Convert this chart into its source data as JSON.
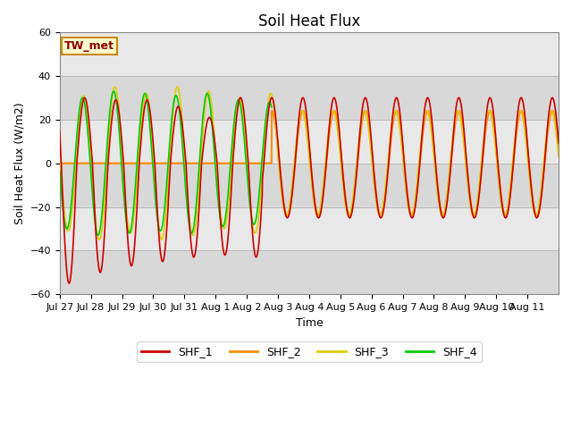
{
  "title": "Soil Heat Flux",
  "ylabel": "Soil Heat Flux (W/m2)",
  "xlabel": "Time",
  "annotation": "TW_met",
  "ylim": [
    -60,
    60
  ],
  "legend_labels": [
    "SHF_1",
    "SHF_2",
    "SHF_3",
    "SHF_4"
  ],
  "colors": {
    "SHF_1": "#cc0000",
    "SHF_2": "#ff8c00",
    "SHF_3": "#ddcc00",
    "SHF_4": "#00cc00"
  },
  "plot_bg": "#e8e8e8",
  "fig_bg": "#ffffff",
  "title_fontsize": 12,
  "axis_fontsize": 9,
  "tick_fontsize": 8,
  "dates": [
    "Jul 27",
    "Jul 28",
    "Jul 29",
    "Jul 30",
    "Jul 31",
    "Aug 1",
    "Aug 2",
    "Aug 3",
    "Aug 4",
    "Aug 5",
    "Aug 6",
    "Aug 7",
    "Aug 8",
    "Aug 9",
    "Aug 10",
    "Aug 11"
  ],
  "n_days": 16
}
